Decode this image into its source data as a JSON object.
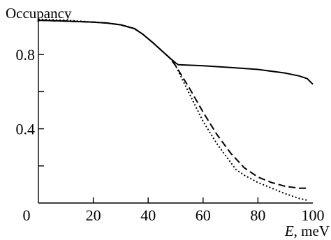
{
  "chart_data": {
    "type": "line",
    "title": "",
    "ylabel": "Occupancy",
    "xlabel_var": "E",
    "xlabel_unit": ", meV",
    "xlim": [
      0,
      100
    ],
    "ylim": [
      0.0,
      1.0
    ],
    "x_ticks": [
      {
        "value": 0,
        "label": "0"
      },
      {
        "value": 20,
        "label": "20"
      },
      {
        "value": 40,
        "label": "40"
      },
      {
        "value": 60,
        "label": "60"
      },
      {
        "value": 80,
        "label": "80"
      },
      {
        "value": 100,
        "label": "100"
      }
    ],
    "y_ticks": [
      {
        "value": 0.2,
        "label": ""
      },
      {
        "value": 0.4,
        "label": "0.4"
      },
      {
        "value": 0.6,
        "label": ""
      },
      {
        "value": 0.8,
        "label": "0.8"
      }
    ],
    "grid": false,
    "legend": "none",
    "series": [
      {
        "style": "solid",
        "x": [
          0,
          10,
          20,
          25,
          30,
          35,
          38,
          42,
          45,
          48,
          50,
          51,
          60,
          70,
          80,
          90,
          95,
          98,
          100
        ],
        "y": [
          0.985,
          0.98,
          0.975,
          0.97,
          0.96,
          0.94,
          0.91,
          0.86,
          0.82,
          0.78,
          0.755,
          0.745,
          0.74,
          0.73,
          0.72,
          0.7,
          0.685,
          0.67,
          0.64
        ]
      },
      {
        "style": "dashed",
        "x": [
          0,
          10,
          20,
          25,
          30,
          35,
          38,
          42,
          45,
          48,
          50,
          55,
          60,
          65,
          70,
          75,
          80,
          85,
          90,
          95,
          98
        ],
        "y": [
          0.985,
          0.98,
          0.975,
          0.97,
          0.96,
          0.94,
          0.91,
          0.86,
          0.82,
          0.78,
          0.74,
          0.62,
          0.49,
          0.37,
          0.27,
          0.19,
          0.14,
          0.11,
          0.09,
          0.08,
          0.08
        ]
      },
      {
        "style": "dotted",
        "x": [
          0,
          10,
          20,
          25,
          30,
          35,
          38,
          42,
          45,
          48,
          50,
          55,
          60,
          65,
          70,
          72,
          75,
          80,
          85,
          90,
          95,
          98
        ],
        "y": [
          0.99,
          0.985,
          0.975,
          0.97,
          0.96,
          0.94,
          0.91,
          0.86,
          0.82,
          0.78,
          0.74,
          0.59,
          0.44,
          0.32,
          0.22,
          0.18,
          0.15,
          0.11,
          0.08,
          0.05,
          0.025,
          0.015
        ]
      }
    ]
  }
}
